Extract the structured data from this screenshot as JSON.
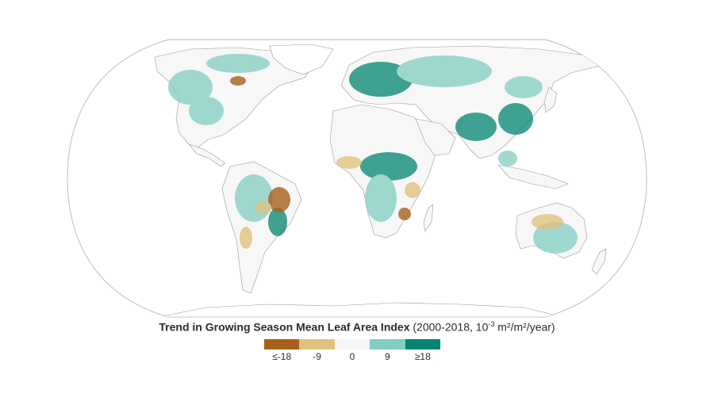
{
  "legend": {
    "title_bold": "Trend in Growing Season Mean Leaf Area Index",
    "title_rest_pre": "(2000-2018, 10",
    "title_exponent": "-3",
    "title_rest_post": " m²/m²/year)",
    "ticks": [
      "≤-18",
      "-9",
      "0",
      "9",
      "≥18"
    ],
    "colors": [
      "#a6611a",
      "#dfc27d",
      "#f5f5f5",
      "#80cdc1",
      "#018571"
    ]
  },
  "map": {
    "projection": "Natural Earth (world)",
    "land_color": "#f7f7f7",
    "border_color": "#9a9a9a"
  }
}
